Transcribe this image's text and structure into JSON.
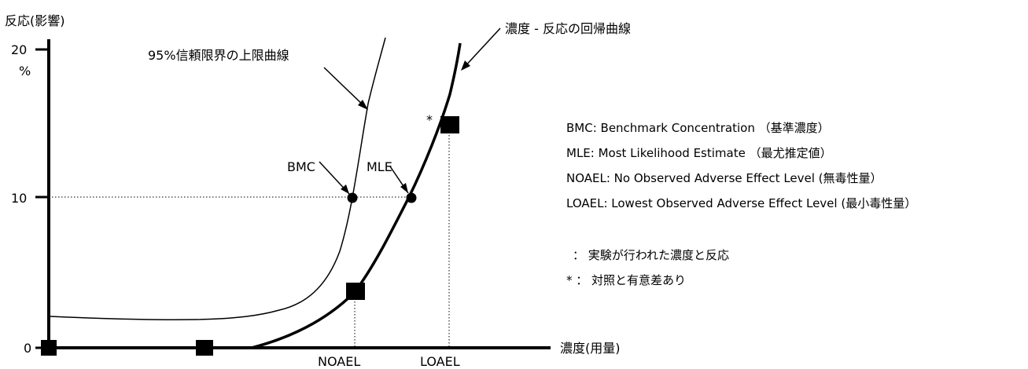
{
  "y_axis": {
    "title": "反応(影響)",
    "unit": "%",
    "ticks": [
      {
        "value": 20,
        "label": "20"
      },
      {
        "value": 10,
        "label": "10"
      },
      {
        "value": 0,
        "label": "0"
      }
    ]
  },
  "x_axis": {
    "title": "濃度(用量)",
    "labels": [
      "NOAEL",
      "LOAEL"
    ]
  },
  "curves": {
    "upper_label": "95%信頼限界の上限曲線",
    "regression_label": "濃度 - 反応の回帰曲線"
  },
  "points": {
    "bmc_label": "BMC",
    "mle_label": "MLE",
    "significance_mark": "*"
  },
  "legend": {
    "lines": [
      "BMC: Benchmark Concentration （基準濃度）",
      "MLE: Most Likelihood Estimate （最尤推定値）",
      "NOAEL: No Observed Adverse Effect Level (無毒性量）",
      "LOAEL: Lowest Observed Adverse Effect Level (最小毒性量）"
    ],
    "square_note": "：  実験が行われた濃度と反応",
    "star_note": "* ：  対照と有意差あり"
  },
  "colors": {
    "line": "#000000",
    "guide": "#000000",
    "background": "#ffffff"
  }
}
